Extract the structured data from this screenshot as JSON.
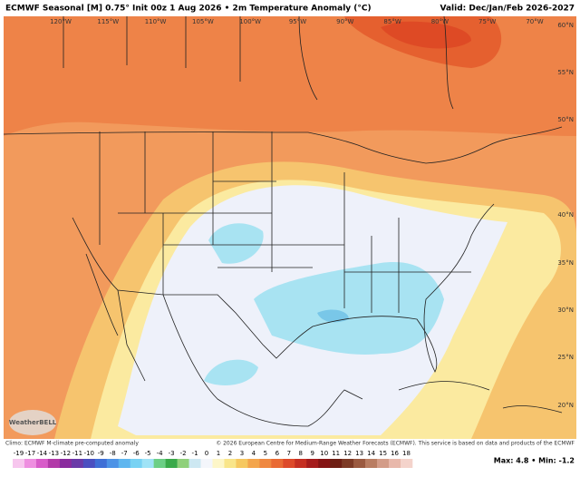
{
  "header": {
    "title": "ECMWF Seasonal [M] 0.75° Init 00z 1 Aug 2026 • 2m Temperature Anomaly (°C)",
    "valid": "Valid: Dec/Jan/Feb 2026-2027"
  },
  "map": {
    "lon_labels": [
      "120°W",
      "115°W",
      "110°W",
      "105°W",
      "100°W",
      "95°W",
      "90°W",
      "85°W",
      "80°W",
      "75°W",
      "70°W"
    ],
    "lat_labels": [
      "60°N",
      "55°N",
      "50°N",
      "40°N",
      "35°N",
      "30°N",
      "25°N",
      "20°N"
    ],
    "logo": "WeatherBELL"
  },
  "footer": {
    "climo": "Climo: ECMWF M-climate pre-computed anomaly",
    "copyright": "© 2026 European Centre for Medium-Range Weather Forecasts (ECMWF). This service is based on data and products of the ECMWF",
    "maxmin": "Max: 4.8 • Min: -1.2"
  },
  "colorbar": {
    "labels": [
      "-19",
      "-17",
      "-14",
      "-13",
      "-12",
      "-11",
      "-10",
      "-9",
      "-8",
      "-7",
      "-6",
      "-5",
      "-4",
      "-3",
      "-2",
      "-1",
      "0",
      "1",
      "2",
      "3",
      "4",
      "5",
      "6",
      "7",
      "8",
      "9",
      "10",
      "11",
      "12",
      "13",
      "14",
      "15",
      "16",
      "18"
    ],
    "colors": [
      "#f7c6ee",
      "#ee8fe0",
      "#d85cc9",
      "#b23aa8",
      "#8a2b9e",
      "#6b3aa8",
      "#4b4fc0",
      "#3f6fd6",
      "#4d93e6",
      "#5fb6ef",
      "#78d2f3",
      "#9fe3f6",
      "#6ccf86",
      "#3aaa4a",
      "#8fd07a",
      "#cde8f2",
      "#f4f6fb",
      "#fdf6c8",
      "#f9e58a",
      "#f6c860",
      "#f3a54c",
      "#ef8840",
      "#e96a34",
      "#dd4a2a",
      "#c52f22",
      "#a51c1c",
      "#851414",
      "#6e1f14",
      "#7d3a25",
      "#9b5a40",
      "#b97d62",
      "#d39c88",
      "#e8b8ab",
      "#f4d3cb"
    ]
  }
}
